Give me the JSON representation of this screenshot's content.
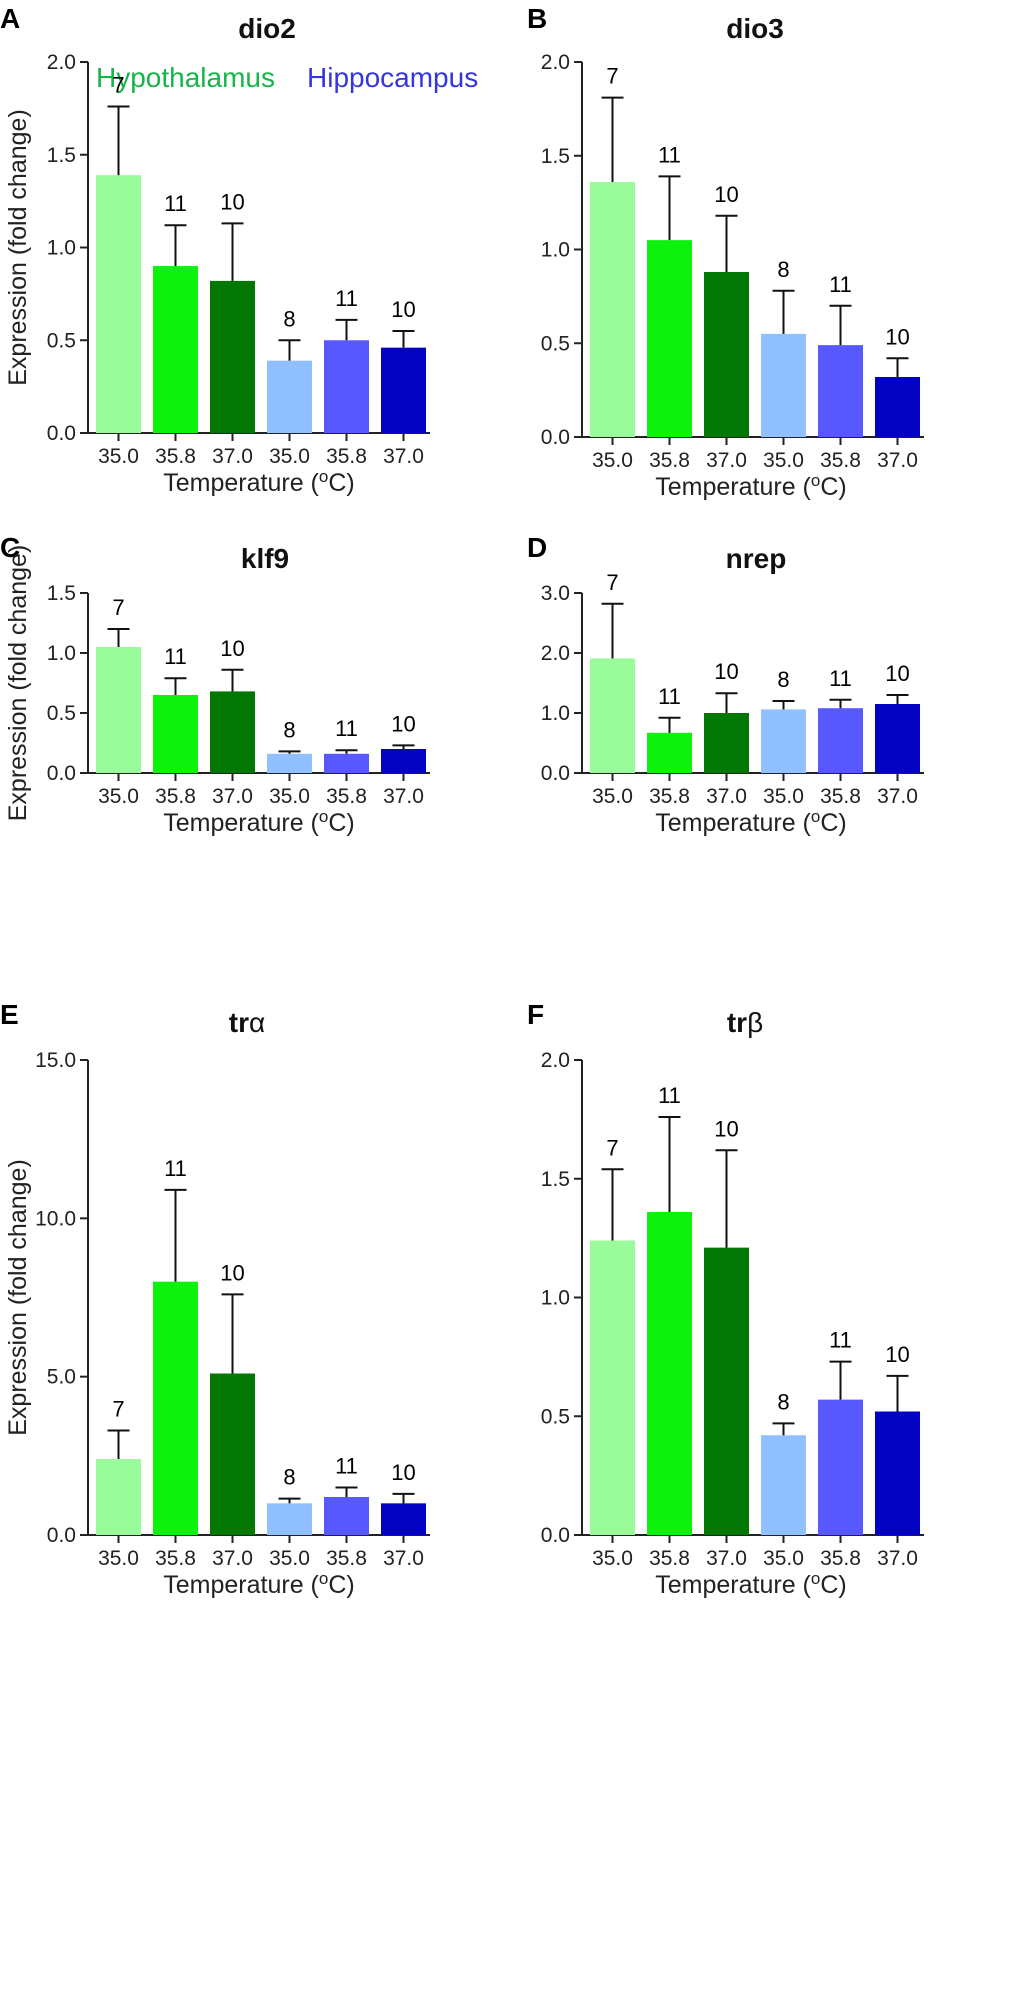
{
  "legend": {
    "hypothalamus": "Hypothalamus",
    "hippocampus": "Hippocampus",
    "hypothalamus_color": "#16b54a",
    "hippocampus_color": "#3535e0"
  },
  "bar_colors": [
    "#99fb99",
    "#0df20d",
    "#037703",
    "#90c0ff",
    "#5858ff",
    "#0202c3"
  ],
  "chart_data": [
    {
      "type": "bar",
      "panel": "A",
      "title": "dio2",
      "categories": [
        "35.0",
        "35.8",
        "37.0",
        "35.0",
        "35.8",
        "37.0"
      ],
      "regions": [
        "Hypothalamus",
        "Hypothalamus",
        "Hypothalamus",
        "Hippocampus",
        "Hippocampus",
        "Hippocampus"
      ],
      "values": [
        1.39,
        0.9,
        0.82,
        0.39,
        0.5,
        0.46
      ],
      "errors": [
        0.37,
        0.22,
        0.31,
        0.11,
        0.11,
        0.09
      ],
      "n": [
        "7",
        "11",
        "10",
        "8",
        "11",
        "10"
      ],
      "ylim": [
        0,
        2
      ],
      "yticks": [
        0,
        0.5,
        1.0,
        1.5,
        2.0
      ],
      "ytick_labels": [
        "0.0",
        "0.5",
        "1.0",
        "1.5",
        "2.0"
      ],
      "xlabel": "Temperature (",
      "xlabel_sup": "o",
      "xlabel_end": "C)",
      "ylabel": "Expression (fold change)"
    },
    {
      "type": "bar",
      "panel": "B",
      "title": "dio3",
      "categories": [
        "35.0",
        "35.8",
        "37.0",
        "35.0",
        "35.8",
        "37.0"
      ],
      "regions": [
        "Hypothalamus",
        "Hypothalamus",
        "Hypothalamus",
        "Hippocampus",
        "Hippocampus",
        "Hippocampus"
      ],
      "values": [
        1.36,
        1.05,
        0.88,
        0.55,
        0.49,
        0.32
      ],
      "errors": [
        0.45,
        0.34,
        0.3,
        0.23,
        0.21,
        0.1
      ],
      "n": [
        "7",
        "11",
        "10",
        "8",
        "11",
        "10"
      ],
      "ylim": [
        0,
        2
      ],
      "yticks": [
        0,
        0.5,
        1.0,
        1.5,
        2.0
      ],
      "ytick_labels": [
        "0.0",
        "0.5",
        "1.0",
        "1.5",
        "2.0"
      ],
      "xlabel": "Temperature (",
      "xlabel_sup": "o",
      "xlabel_end": "C)",
      "ylabel": ""
    },
    {
      "type": "bar",
      "panel": "C",
      "title": "klf9",
      "categories": [
        "35.0",
        "35.8",
        "37.0",
        "35.0",
        "35.8",
        "37.0"
      ],
      "regions": [
        "Hypothalamus",
        "Hypothalamus",
        "Hypothalamus",
        "Hippocampus",
        "Hippocampus",
        "Hippocampus"
      ],
      "values": [
        1.05,
        0.65,
        0.68,
        0.16,
        0.16,
        0.2
      ],
      "errors": [
        0.15,
        0.14,
        0.18,
        0.02,
        0.03,
        0.03
      ],
      "n": [
        "7",
        "11",
        "10",
        "8",
        "11",
        "10"
      ],
      "ylim": [
        0,
        1.5
      ],
      "yticks": [
        0,
        0.5,
        1.0,
        1.5
      ],
      "ytick_labels": [
        "0.0",
        "0.5",
        "1.0",
        "1.5"
      ],
      "xlabel": "Temperature (",
      "xlabel_sup": "o",
      "xlabel_end": "C)",
      "ylabel": "Expression (fold change)"
    },
    {
      "type": "bar",
      "panel": "D",
      "title": "nrep",
      "categories": [
        "35.0",
        "35.8",
        "37.0",
        "35.0",
        "35.8",
        "37.0"
      ],
      "regions": [
        "Hypothalamus",
        "Hypothalamus",
        "Hypothalamus",
        "Hippocampus",
        "Hippocampus",
        "Hippocampus"
      ],
      "values": [
        1.91,
        0.67,
        1.0,
        1.06,
        1.08,
        1.15
      ],
      "errors": [
        0.91,
        0.25,
        0.33,
        0.14,
        0.14,
        0.15
      ],
      "n": [
        "7",
        "11",
        "10",
        "8",
        "11",
        "10"
      ],
      "ylim": [
        0,
        3
      ],
      "yticks": [
        0,
        1.0,
        2.0,
        3.0
      ],
      "ytick_labels": [
        "0.0",
        "1.0",
        "2.0",
        "3.0"
      ],
      "xlabel": "Temperature (",
      "xlabel_sup": "o",
      "xlabel_end": "C)",
      "ylabel": ""
    },
    {
      "type": "bar",
      "panel": "E",
      "title": "tr",
      "title_symbol": "α",
      "categories": [
        "35.0",
        "35.8",
        "37.0",
        "35.0",
        "35.8",
        "37.0"
      ],
      "regions": [
        "Hypothalamus",
        "Hypothalamus",
        "Hypothalamus",
        "Hippocampus",
        "Hippocampus",
        "Hippocampus"
      ],
      "values": [
        2.4,
        8.0,
        5.1,
        1.0,
        1.2,
        1.0
      ],
      "errors": [
        0.9,
        2.9,
        2.5,
        0.15,
        0.3,
        0.3
      ],
      "n": [
        "7",
        "11",
        "10",
        "8",
        "11",
        "10"
      ],
      "ylim": [
        0,
        15
      ],
      "yticks": [
        0,
        5,
        10,
        15
      ],
      "ytick_labels": [
        "0.0",
        "5.0",
        "10.0",
        "15.0"
      ],
      "xlabel": "Temperature (",
      "xlabel_sup": "o",
      "xlabel_end": "C)",
      "ylabel": "Expression (fold change)"
    },
    {
      "type": "bar",
      "panel": "F",
      "title": "tr",
      "title_symbol": "β",
      "categories": [
        "35.0",
        "35.8",
        "37.0",
        "35.0",
        "35.8",
        "37.0"
      ],
      "regions": [
        "Hypothalamus",
        "Hypothalamus",
        "Hypothalamus",
        "Hippocampus",
        "Hippocampus",
        "Hippocampus"
      ],
      "values": [
        1.24,
        1.36,
        1.21,
        0.42,
        0.57,
        0.52
      ],
      "errors": [
        0.3,
        0.4,
        0.41,
        0.05,
        0.16,
        0.15
      ],
      "n": [
        "7",
        "11",
        "10",
        "8",
        "11",
        "10"
      ],
      "ylim": [
        0,
        2
      ],
      "yticks": [
        0,
        0.5,
        1.0,
        1.5,
        2.0
      ],
      "ytick_labels": [
        "0.0",
        "0.5",
        "1.0",
        "1.5",
        "2.0"
      ],
      "xlabel": "Temperature (",
      "xlabel_sup": "o",
      "xlabel_end": "C)",
      "ylabel": ""
    }
  ]
}
